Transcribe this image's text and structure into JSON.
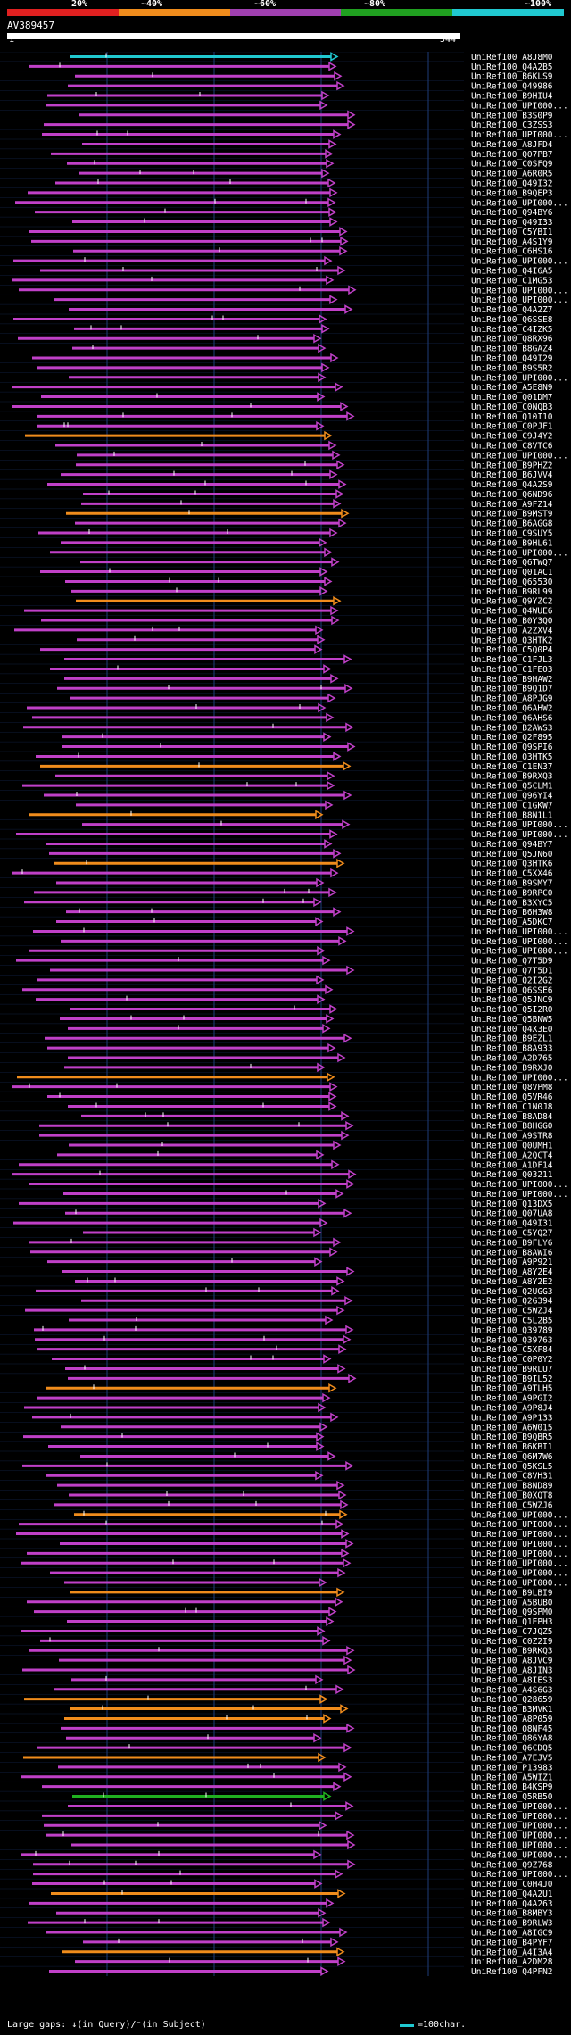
{
  "header": {
    "percent_labels": [
      "20%",
      "~40%",
      "~60%",
      "~80%",
      "~100%"
    ],
    "bar_colors": [
      "#e02020",
      "#f08c1c",
      "#a040b0",
      "#20a020",
      "#20c8d0"
    ]
  },
  "query": {
    "name": "AV389457",
    "start": "1",
    "end": "544"
  },
  "colors": {
    "grid": "#1e3c78",
    "identity_low": "#f08c1c",
    "identity_mid": "#c040c8",
    "identity_high": "#20b020",
    "identity_top": "#20c8d0"
  },
  "hits": [
    {
      "label": "UniRef100_A8J8M0",
      "color": "top"
    },
    {
      "label": "UniRef100_Q4A2B5",
      "color": "mid"
    },
    {
      "label": "UniRef100_B6KLS9",
      "color": "mid"
    },
    {
      "label": "UniRef100_Q49986",
      "color": "mid"
    },
    {
      "label": "UniRef100_B9HIU4",
      "color": "mid"
    },
    {
      "label": "UniRef100_UPI000...",
      "color": "mid"
    },
    {
      "label": "UniRef100_B3S0P9",
      "color": "mid"
    },
    {
      "label": "UniRef100_C3ZSS3",
      "color": "mid"
    },
    {
      "label": "UniRef100_UPI000...",
      "color": "mid"
    },
    {
      "label": "UniRef100_A8JFD4",
      "color": "mid"
    },
    {
      "label": "UniRef100_Q07PB7",
      "color": "mid"
    },
    {
      "label": "UniRef100_C0SFQ9",
      "color": "mid"
    },
    {
      "label": "UniRef100_A6R0R5",
      "color": "mid"
    },
    {
      "label": "UniRef100_Q49I32",
      "color": "mid"
    },
    {
      "label": "UniRef100_B9QEP3",
      "color": "mid"
    },
    {
      "label": "UniRef100_UPI000...",
      "color": "mid"
    },
    {
      "label": "UniRef100_Q94BY6",
      "color": "mid"
    },
    {
      "label": "UniRef100_Q49I33",
      "color": "mid"
    },
    {
      "label": "UniRef100_C5YBI1",
      "color": "mid"
    },
    {
      "label": "UniRef100_A4S1Y9",
      "color": "mid"
    },
    {
      "label": "UniRef100_C6HS16",
      "color": "mid"
    },
    {
      "label": "UniRef100_UPI000...",
      "color": "mid"
    },
    {
      "label": "UniRef100_Q4I6A5",
      "color": "mid"
    },
    {
      "label": "UniRef100_C1MG53",
      "color": "mid"
    },
    {
      "label": "UniRef100_UPI000...",
      "color": "mid"
    },
    {
      "label": "UniRef100_UPI000...",
      "color": "mid"
    },
    {
      "label": "UniRef100_Q4A2Z7",
      "color": "mid"
    },
    {
      "label": "UniRef100_Q6SSE8",
      "color": "mid"
    },
    {
      "label": "UniRef100_C4IZK5",
      "color": "mid"
    },
    {
      "label": "UniRef100_Q8RX96",
      "color": "mid"
    },
    {
      "label": "UniRef100_B8GAZ4",
      "color": "mid"
    },
    {
      "label": "UniRef100_Q49I29",
      "color": "mid"
    },
    {
      "label": "UniRef100_B9S5R2",
      "color": "mid"
    },
    {
      "label": "UniRef100_UPI000...",
      "color": "mid"
    },
    {
      "label": "UniRef100_A5E8N9",
      "color": "mid"
    },
    {
      "label": "UniRef100_Q01DM7",
      "color": "mid"
    },
    {
      "label": "UniRef100_C0NQB3",
      "color": "mid"
    },
    {
      "label": "UniRef100_Q10I10",
      "color": "mid"
    },
    {
      "label": "UniRef100_C0PJF1",
      "color": "mid"
    },
    {
      "label": "UniRef100_C9J4Y2",
      "color": "low"
    },
    {
      "label": "UniRef100_C8VTC6",
      "color": "mid"
    },
    {
      "label": "UniRef100_UPI000...",
      "color": "mid"
    },
    {
      "label": "UniRef100_B9PHZ2",
      "color": "mid"
    },
    {
      "label": "UniRef100_B6JVV4",
      "color": "mid"
    },
    {
      "label": "UniRef100_Q4A2S9",
      "color": "mid"
    },
    {
      "label": "UniRef100_Q6ND96",
      "color": "mid"
    },
    {
      "label": "UniRef100_A9FZ14",
      "color": "mid"
    },
    {
      "label": "UniRef100_B9MST9",
      "color": "low"
    },
    {
      "label": "UniRef100_B6AGG8",
      "color": "mid"
    },
    {
      "label": "UniRef100_C9SUY5",
      "color": "mid"
    },
    {
      "label": "UniRef100_B9HL61",
      "color": "mid"
    },
    {
      "label": "UniRef100_UPI000...",
      "color": "mid"
    },
    {
      "label": "UniRef100_Q6TWQ7",
      "color": "mid"
    },
    {
      "label": "UniRef100_Q01AC1",
      "color": "mid"
    },
    {
      "label": "UniRef100_Q65530",
      "color": "mid"
    },
    {
      "label": "UniRef100_B9RL99",
      "color": "mid"
    },
    {
      "label": "UniRef100_Q9YZC2",
      "color": "low"
    },
    {
      "label": "UniRef100_Q4WUE6",
      "color": "mid"
    },
    {
      "label": "UniRef100_B0Y3Q0",
      "color": "mid"
    },
    {
      "label": "UniRef100_A2ZXV4",
      "color": "mid"
    },
    {
      "label": "UniRef100_Q3HTK2",
      "color": "mid"
    },
    {
      "label": "UniRef100_C5Q0P4",
      "color": "mid"
    },
    {
      "label": "UniRef100_C1FJL3",
      "color": "mid"
    },
    {
      "label": "UniRef100_C1FE03",
      "color": "mid"
    },
    {
      "label": "UniRef100_B9HAW2",
      "color": "mid"
    },
    {
      "label": "UniRef100_B9Q1D7",
      "color": "mid"
    },
    {
      "label": "UniRef100_A8PJG9",
      "color": "mid"
    },
    {
      "label": "UniRef100_Q6AHW2",
      "color": "mid"
    },
    {
      "label": "UniRef100_Q6AHS6",
      "color": "mid"
    },
    {
      "label": "UniRef100_B2AWS3",
      "color": "mid"
    },
    {
      "label": "UniRef100_Q2F895",
      "color": "mid"
    },
    {
      "label": "UniRef100_Q9SPI6",
      "color": "mid"
    },
    {
      "label": "UniRef100_Q3HTK5",
      "color": "mid"
    },
    {
      "label": "UniRef100_C1EN37",
      "color": "low"
    },
    {
      "label": "UniRef100_B9RXQ3",
      "color": "mid"
    },
    {
      "label": "UniRef100_Q5CLM1",
      "color": "mid"
    },
    {
      "label": "UniRef100_Q96YI4",
      "color": "mid"
    },
    {
      "label": "UniRef100_C1GKW7",
      "color": "mid"
    },
    {
      "label": "UniRef100_B8N1L1",
      "color": "low"
    },
    {
      "label": "UniRef100_UPI000...",
      "color": "mid"
    },
    {
      "label": "UniRef100_UPI000...",
      "color": "mid"
    },
    {
      "label": "UniRef100_Q94BY7",
      "color": "mid"
    },
    {
      "label": "UniRef100_Q5JN60",
      "color": "mid"
    },
    {
      "label": "UniRef100_Q3HTK6",
      "color": "low"
    },
    {
      "label": "UniRef100_C5XX46",
      "color": "mid"
    },
    {
      "label": "UniRef100_B9SMY7",
      "color": "mid"
    },
    {
      "label": "UniRef100_B9RPC0",
      "color": "mid"
    },
    {
      "label": "UniRef100_B3XYC5",
      "color": "mid"
    },
    {
      "label": "UniRef100_B6H3W8",
      "color": "mid"
    },
    {
      "label": "UniRef100_A5DKC7",
      "color": "mid"
    },
    {
      "label": "UniRef100_UPI000...",
      "color": "mid"
    },
    {
      "label": "UniRef100_UPI000...",
      "color": "mid"
    },
    {
      "label": "UniRef100_UPI000...",
      "color": "mid"
    },
    {
      "label": "UniRef100_Q7T5D9",
      "color": "mid"
    },
    {
      "label": "UniRef100_Q7T5D1",
      "color": "mid"
    },
    {
      "label": "UniRef100_Q2I2G2",
      "color": "mid"
    },
    {
      "label": "UniRef100_Q6SSE6",
      "color": "mid"
    },
    {
      "label": "UniRef100_Q5JNC9",
      "color": "mid"
    },
    {
      "label": "UniRef100_Q5I2R0",
      "color": "mid"
    },
    {
      "label": "UniRef100_Q5BNW5",
      "color": "mid"
    },
    {
      "label": "UniRef100_Q4X3E0",
      "color": "mid"
    },
    {
      "label": "UniRef100_B9EZL1",
      "color": "mid"
    },
    {
      "label": "UniRef100_B8A933",
      "color": "mid"
    },
    {
      "label": "UniRef100_A2D765",
      "color": "mid"
    },
    {
      "label": "UniRef100_B9RXJ0",
      "color": "mid"
    },
    {
      "label": "UniRef100_UPI000...",
      "color": "low"
    },
    {
      "label": "UniRef100_Q8VPM8",
      "color": "mid"
    },
    {
      "label": "UniRef100_Q5VR46",
      "color": "mid"
    },
    {
      "label": "UniRef100_C1N0J8",
      "color": "mid"
    },
    {
      "label": "UniRef100_B8AD84",
      "color": "mid"
    },
    {
      "label": "UniRef100_B8HGG0",
      "color": "mid"
    },
    {
      "label": "UniRef100_A9STR8",
      "color": "mid"
    },
    {
      "label": "UniRef100_Q0UMH1",
      "color": "mid"
    },
    {
      "label": "UniRef100_A2QCT4",
      "color": "mid"
    },
    {
      "label": "UniRef100_A1DF14",
      "color": "mid"
    },
    {
      "label": "UniRef100_Q03211",
      "color": "mid"
    },
    {
      "label": "UniRef100_UPI000...",
      "color": "mid"
    },
    {
      "label": "UniRef100_UPI000...",
      "color": "mid"
    },
    {
      "label": "UniRef100_Q13DX5",
      "color": "mid"
    },
    {
      "label": "UniRef100_Q07UA8",
      "color": "mid"
    },
    {
      "label": "UniRef100_Q49I31",
      "color": "mid"
    },
    {
      "label": "UniRef100_C5YQ27",
      "color": "mid"
    },
    {
      "label": "UniRef100_B9FLY6",
      "color": "mid"
    },
    {
      "label": "UniRef100_B8AWI6",
      "color": "mid"
    },
    {
      "label": "UniRef100_A9P921",
      "color": "mid"
    },
    {
      "label": "UniRef100_A8Y2E4",
      "color": "mid"
    },
    {
      "label": "UniRef100_A8Y2E2",
      "color": "mid"
    },
    {
      "label": "UniRef100_Q2UGG3",
      "color": "mid"
    },
    {
      "label": "UniRef100_Q2G394",
      "color": "mid"
    },
    {
      "label": "UniRef100_C5WZJ4",
      "color": "mid"
    },
    {
      "label": "UniRef100_C5L2B5",
      "color": "mid"
    },
    {
      "label": "UniRef100_Q39789",
      "color": "mid"
    },
    {
      "label": "UniRef100_Q39763",
      "color": "mid"
    },
    {
      "label": "UniRef100_C5XF84",
      "color": "mid"
    },
    {
      "label": "UniRef100_C0P0Y2",
      "color": "mid"
    },
    {
      "label": "UniRef100_B9RLU7",
      "color": "mid"
    },
    {
      "label": "UniRef100_B9IL52",
      "color": "mid"
    },
    {
      "label": "UniRef100_A9TLH5",
      "color": "low"
    },
    {
      "label": "UniRef100_A9PGI2",
      "color": "mid"
    },
    {
      "label": "UniRef100_A9P8J4",
      "color": "mid"
    },
    {
      "label": "UniRef100_A9P133",
      "color": "mid"
    },
    {
      "label": "UniRef100_A6W015",
      "color": "mid"
    },
    {
      "label": "UniRef100_B9QBR5",
      "color": "mid"
    },
    {
      "label": "UniRef100_B6KBI1",
      "color": "mid"
    },
    {
      "label": "UniRef100_Q6M7W6",
      "color": "mid"
    },
    {
      "label": "UniRef100_Q5KSL5",
      "color": "mid"
    },
    {
      "label": "UniRef100_C8VH31",
      "color": "mid"
    },
    {
      "label": "UniRef100_B8ND89",
      "color": "mid"
    },
    {
      "label": "UniRef100_B0XQT8",
      "color": "mid"
    },
    {
      "label": "UniRef100_C5WZJ6",
      "color": "mid"
    },
    {
      "label": "UniRef100_UPI000...",
      "color": "low"
    },
    {
      "label": "UniRef100_UPI000...",
      "color": "mid"
    },
    {
      "label": "UniRef100_UPI000...",
      "color": "mid"
    },
    {
      "label": "UniRef100_UPI000...",
      "color": "mid"
    },
    {
      "label": "UniRef100_UPI000...",
      "color": "mid"
    },
    {
      "label": "UniRef100_UPI000...",
      "color": "mid"
    },
    {
      "label": "UniRef100_UPI000...",
      "color": "mid"
    },
    {
      "label": "UniRef100_UPI000...",
      "color": "mid"
    },
    {
      "label": "UniRef100_B9LBI9",
      "color": "low"
    },
    {
      "label": "UniRef100_A5BUB0",
      "color": "mid"
    },
    {
      "label": "UniRef100_Q9SPM0",
      "color": "mid"
    },
    {
      "label": "UniRef100_Q1EPH3",
      "color": "mid"
    },
    {
      "label": "UniRef100_C7JQZ5",
      "color": "mid"
    },
    {
      "label": "UniRef100_C0Z2I9",
      "color": "mid"
    },
    {
      "label": "UniRef100_B9RKQ3",
      "color": "mid"
    },
    {
      "label": "UniRef100_A8JVC9",
      "color": "mid"
    },
    {
      "label": "UniRef100_A8JIN3",
      "color": "mid"
    },
    {
      "label": "UniRef100_A8IES3",
      "color": "mid"
    },
    {
      "label": "UniRef100_A4S6G3",
      "color": "mid"
    },
    {
      "label": "UniRef100_Q28659",
      "color": "low"
    },
    {
      "label": "UniRef100_B3MVK1",
      "color": "low"
    },
    {
      "label": "UniRef100_A8P059",
      "color": "low"
    },
    {
      "label": "UniRef100_Q8NF45",
      "color": "mid"
    },
    {
      "label": "UniRef100_Q86YA8",
      "color": "mid"
    },
    {
      "label": "UniRef100_Q6CDQ5",
      "color": "mid"
    },
    {
      "label": "UniRef100_A7EJV5",
      "color": "low"
    },
    {
      "label": "UniRef100_P13983",
      "color": "mid"
    },
    {
      "label": "UniRef100_A5WIZ1",
      "color": "mid"
    },
    {
      "label": "UniRef100_B4KSP9",
      "color": "mid"
    },
    {
      "label": "UniRef100_Q5RB50",
      "color": "high"
    },
    {
      "label": "UniRef100_UPI000...",
      "color": "mid"
    },
    {
      "label": "UniRef100_UPI000...",
      "color": "mid"
    },
    {
      "label": "UniRef100_UPI000...",
      "color": "mid"
    },
    {
      "label": "UniRef100_UPI000...",
      "color": "mid"
    },
    {
      "label": "UniRef100_UPI000...",
      "color": "mid"
    },
    {
      "label": "UniRef100_UPI000...",
      "color": "mid"
    },
    {
      "label": "UniRef100_Q9Z768",
      "color": "mid"
    },
    {
      "label": "UniRef100_UPI000...",
      "color": "mid"
    },
    {
      "label": "UniRef100_C0H4J0",
      "color": "mid"
    },
    {
      "label": "UniRef100_Q4A2U1",
      "color": "low"
    },
    {
      "label": "UniRef100_Q4A263",
      "color": "mid"
    },
    {
      "label": "UniRef100_B8MBY3",
      "color": "mid"
    },
    {
      "label": "UniRef100_B9RLW3",
      "color": "mid"
    },
    {
      "label": "UniRef100_A8IGC9",
      "color": "mid"
    },
    {
      "label": "UniRef100_B4PYF7",
      "color": "mid"
    },
    {
      "label": "UniRef100_A4I3A4",
      "color": "low"
    },
    {
      "label": "UniRef100_A2DM28",
      "color": "mid"
    },
    {
      "label": "UniRef100_Q4PFN2",
      "color": "mid"
    }
  ],
  "footer": {
    "gaps_legend": "Large gaps: ↓(in Query)/⁻(in Subject)",
    "scale_legend": "=100char."
  }
}
